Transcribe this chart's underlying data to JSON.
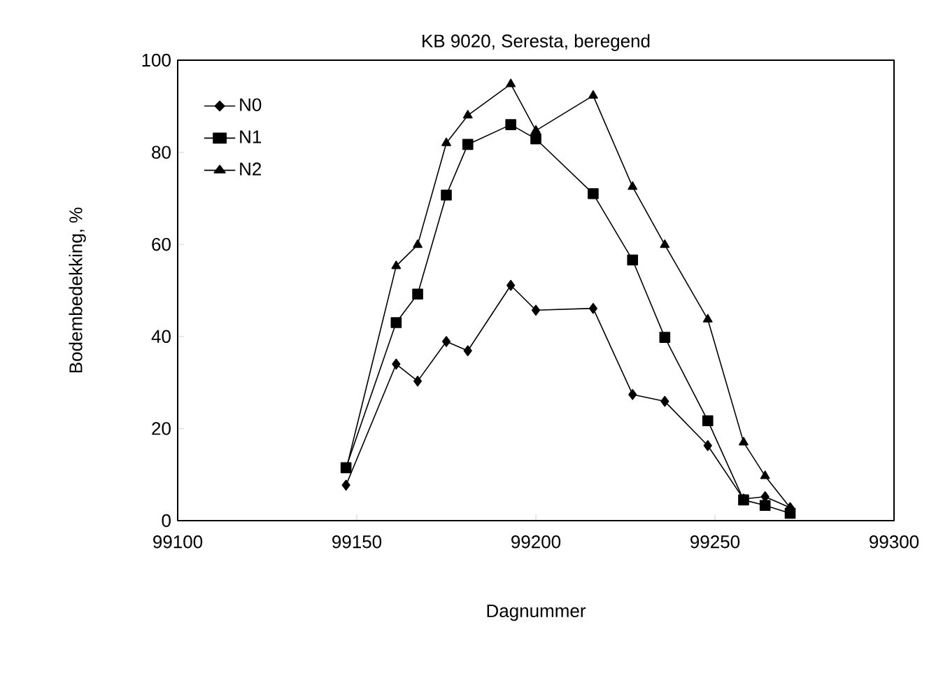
{
  "chart_data": {
    "type": "line",
    "title": "KB 9020, Seresta, beregend",
    "xlabel": "Dagnummer",
    "ylabel": "Bodembedekking, %",
    "x": [
      99147,
      99161,
      99167,
      99175,
      99181,
      99193,
      99200,
      99216,
      99227,
      99236,
      99248,
      99258,
      99264,
      99271
    ],
    "xlim": [
      99100,
      99300
    ],
    "xticks": [
      99100,
      99150,
      99200,
      99250,
      99300
    ],
    "ylim": [
      0,
      100
    ],
    "yticks": [
      0,
      20,
      40,
      60,
      80,
      100
    ],
    "legend": "top left",
    "grid": false,
    "line_style": "solid",
    "series": [
      {
        "name": "N0",
        "color": "#000000",
        "marker": "diamond",
        "values": [
          7.7,
          34,
          30.3,
          38.9,
          36.9,
          51.1,
          45.7,
          46.1,
          27.4,
          25.9,
          16.3,
          4.7,
          5.2,
          2.8
        ]
      },
      {
        "name": "N1",
        "color": "#000000",
        "marker": "square",
        "values": [
          11.5,
          43,
          49.2,
          70.7,
          81.7,
          86,
          82.9,
          71,
          56.6,
          39.8,
          21.7,
          4.5,
          3.3,
          1.6
        ]
      },
      {
        "name": "N2",
        "color": "#000000",
        "marker": "triangle",
        "values": [
          11,
          55.3,
          59.9,
          82,
          88,
          94.8,
          84.7,
          92.3,
          72.5,
          59.9,
          43.7,
          17,
          9.7,
          2.8
        ]
      }
    ]
  }
}
